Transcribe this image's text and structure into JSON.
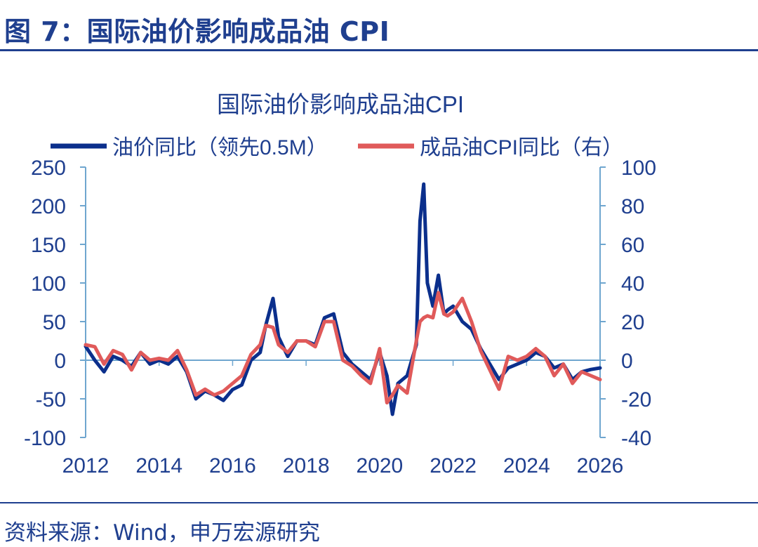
{
  "header": {
    "figure_title": "图 7：国际油价影响成品油 CPI"
  },
  "footer": {
    "source": "资料来源：Wind，申万宏源研究"
  },
  "colors": {
    "brand": "#1f3f8f",
    "series_oil": "#0b2f8c",
    "series_cpi": "#e05a5a",
    "axis": "#6fa6cf"
  },
  "chart_data": {
    "type": "line",
    "title": "国际油价影响成品油CPI",
    "legend": [
      "油价同比（领先0.5M）",
      "成品油CPI同比（右）"
    ],
    "legend_position": "top",
    "xlim": [
      2012,
      2026
    ],
    "x_ticks": [
      "2012",
      "2014",
      "2016",
      "2018",
      "2020",
      "2022",
      "2024",
      "2026"
    ],
    "y_left": {
      "lim": [
        -100,
        250
      ],
      "ticks": [
        "250",
        "200",
        "150",
        "100",
        "50",
        "0",
        "-50",
        "-100"
      ]
    },
    "y_right": {
      "lim": [
        -40,
        100
      ],
      "ticks": [
        "100",
        "80",
        "60",
        "40",
        "20",
        "0",
        "-20",
        "-40"
      ]
    },
    "series": [
      {
        "name": "油价同比（领先0.5M）",
        "axis": "left",
        "x": [
          2012.0,
          2012.25,
          2012.5,
          2012.75,
          2013.0,
          2013.25,
          2013.5,
          2013.75,
          2014.0,
          2014.25,
          2014.5,
          2014.75,
          2015.0,
          2015.25,
          2015.5,
          2015.75,
          2016.0,
          2016.25,
          2016.5,
          2016.75,
          2016.9,
          2017.1,
          2017.25,
          2017.5,
          2017.75,
          2018.0,
          2018.25,
          2018.5,
          2018.75,
          2019.0,
          2019.25,
          2019.5,
          2019.75,
          2020.0,
          2020.2,
          2020.35,
          2020.5,
          2020.75,
          2021.0,
          2021.1,
          2021.2,
          2021.3,
          2021.45,
          2021.6,
          2021.75,
          2021.85,
          2022.0,
          2022.25,
          2022.5,
          2022.75,
          2023.0,
          2023.25,
          2023.5,
          2023.75,
          2024.0,
          2024.25,
          2024.5,
          2024.75,
          2025.0,
          2025.25,
          2025.5,
          2025.75,
          2026.0
        ],
        "values": [
          18,
          0,
          -15,
          5,
          0,
          -8,
          10,
          -5,
          0,
          -5,
          5,
          -15,
          -50,
          -40,
          -45,
          -52,
          -38,
          -32,
          0,
          10,
          45,
          80,
          30,
          5,
          25,
          25,
          20,
          55,
          60,
          10,
          -5,
          -15,
          -25,
          10,
          -20,
          -70,
          -30,
          -20,
          20,
          180,
          228,
          100,
          70,
          110,
          60,
          65,
          70,
          50,
          40,
          15,
          -5,
          -25,
          -10,
          -5,
          0,
          10,
          5,
          -10,
          -5,
          -25,
          -15,
          -12,
          -10
        ]
      },
      {
        "name": "成品油CPI同比（右）",
        "axis": "right",
        "x": [
          2012.0,
          2012.25,
          2012.5,
          2012.75,
          2013.0,
          2013.25,
          2013.5,
          2013.75,
          2014.0,
          2014.25,
          2014.5,
          2014.75,
          2015.0,
          2015.25,
          2015.5,
          2015.75,
          2016.0,
          2016.25,
          2016.5,
          2016.75,
          2016.9,
          2017.1,
          2017.25,
          2017.5,
          2017.75,
          2018.0,
          2018.25,
          2018.5,
          2018.75,
          2019.0,
          2019.25,
          2019.5,
          2019.75,
          2020.0,
          2020.2,
          2020.35,
          2020.5,
          2020.75,
          2021.0,
          2021.1,
          2021.2,
          2021.3,
          2021.45,
          2021.6,
          2021.75,
          2021.85,
          2022.0,
          2022.25,
          2022.5,
          2022.75,
          2023.0,
          2023.25,
          2023.5,
          2023.75,
          2024.0,
          2024.25,
          2024.5,
          2024.75,
          2025.0,
          2025.25,
          2025.5,
          2025.75,
          2026.0
        ],
        "values": [
          8,
          7,
          -2,
          5,
          3,
          -5,
          4,
          0,
          1,
          0,
          5,
          -5,
          -18,
          -15,
          -18,
          -16,
          -12,
          -8,
          3,
          8,
          18,
          17,
          8,
          4,
          10,
          10,
          7,
          20,
          20,
          0,
          -3,
          -8,
          -12,
          6,
          -22,
          -18,
          -13,
          -17,
          10,
          20,
          22,
          23,
          22,
          35,
          24,
          23,
          25,
          32,
          20,
          5,
          -5,
          -15,
          2,
          0,
          2,
          6,
          2,
          -8,
          -2,
          -12,
          -6,
          -8,
          -10
        ]
      }
    ]
  }
}
